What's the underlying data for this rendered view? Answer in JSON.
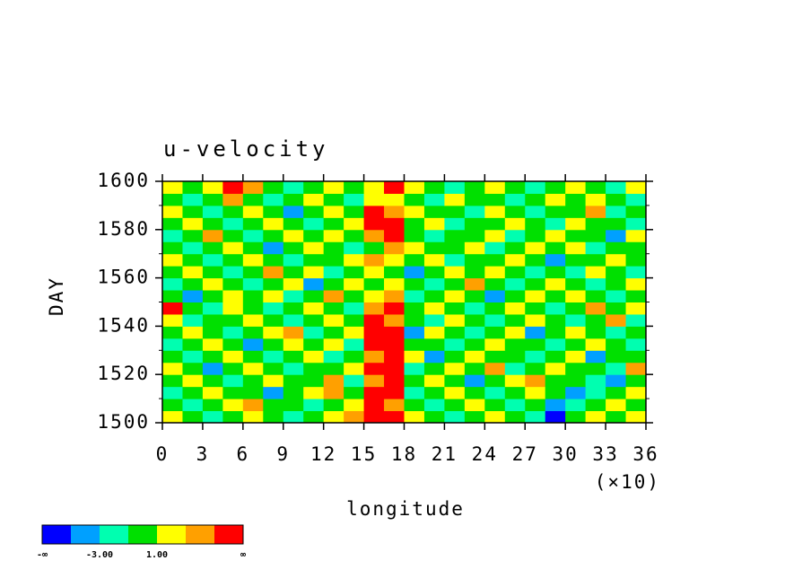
{
  "chart_data": {
    "type": "heatmap",
    "title": "u-velocity",
    "ylabel": "DAY",
    "xlabel": "longitude",
    "xaxis_multiplier": "(×10)",
    "xlim": [
      0,
      36
    ],
    "ylim": [
      1500,
      1600
    ],
    "xticks": [
      0,
      3,
      6,
      9,
      12,
      15,
      18,
      21,
      24,
      27,
      30,
      33,
      36
    ],
    "yticks": [
      1500,
      1520,
      1540,
      1560,
      1580,
      1600
    ],
    "yminorticks": [
      1510,
      1530,
      1550,
      1570,
      1590
    ],
    "xbins": [
      0,
      1.5,
      3,
      4.5,
      6,
      7.5,
      9,
      10.5,
      12,
      13.5,
      15,
      16.5,
      18,
      19.5,
      21,
      22.5,
      24,
      25.5,
      27,
      28.5,
      30,
      31.5,
      33,
      34.5,
      36
    ],
    "ybins": [
      1500,
      1505,
      1510,
      1515,
      1520,
      1525,
      1530,
      1535,
      1540,
      1545,
      1550,
      1555,
      1560,
      1565,
      1570,
      1575,
      1580,
      1585,
      1590,
      1595,
      1600
    ],
    "values": [
      [
        2,
        0,
        -2,
        0,
        2,
        0,
        -2,
        0,
        2,
        4,
        6,
        6,
        2,
        0,
        -2,
        0,
        2,
        0,
        -2,
        -6,
        0,
        2,
        0,
        2
      ],
      [
        0,
        -2,
        0,
        2,
        4,
        0,
        0,
        -2,
        0,
        2,
        6,
        4,
        0,
        -2,
        0,
        2,
        0,
        -2,
        0,
        -4,
        -2,
        0,
        2,
        0
      ],
      [
        -2,
        0,
        2,
        0,
        0,
        -4,
        0,
        2,
        4,
        0,
        6,
        6,
        -2,
        0,
        2,
        0,
        -2,
        0,
        2,
        0,
        -4,
        -2,
        0,
        2
      ],
      [
        0,
        2,
        0,
        -2,
        0,
        2,
        0,
        0,
        4,
        -2,
        4,
        6,
        0,
        2,
        0,
        -4,
        0,
        2,
        4,
        0,
        0,
        -2,
        -4,
        0
      ],
      [
        2,
        0,
        -4,
        0,
        2,
        0,
        -2,
        0,
        0,
        2,
        6,
        6,
        -2,
        0,
        2,
        0,
        4,
        -2,
        0,
        2,
        0,
        0,
        -2,
        4
      ],
      [
        0,
        -2,
        0,
        2,
        0,
        -2,
        0,
        2,
        -2,
        0,
        4,
        6,
        2,
        -4,
        0,
        2,
        0,
        0,
        -2,
        0,
        2,
        -4,
        0,
        0
      ],
      [
        -2,
        0,
        2,
        0,
        -4,
        0,
        2,
        0,
        2,
        -2,
        6,
        6,
        0,
        0,
        -2,
        0,
        2,
        0,
        0,
        -2,
        0,
        2,
        0,
        -2
      ],
      [
        0,
        2,
        0,
        -2,
        0,
        2,
        4,
        -2,
        0,
        2,
        6,
        6,
        -4,
        2,
        0,
        -2,
        0,
        2,
        -4,
        0,
        2,
        0,
        -2,
        0
      ],
      [
        2,
        -2,
        0,
        0,
        2,
        0,
        -2,
        0,
        2,
        0,
        6,
        4,
        0,
        -2,
        2,
        0,
        -2,
        0,
        2,
        0,
        -2,
        0,
        4,
        -2
      ],
      [
        6,
        0,
        -2,
        2,
        0,
        -2,
        0,
        2,
        0,
        -2,
        4,
        6,
        0,
        2,
        0,
        -2,
        0,
        2,
        0,
        -2,
        0,
        4,
        0,
        2
      ],
      [
        0,
        -4,
        0,
        2,
        0,
        2,
        -2,
        0,
        4,
        0,
        2,
        4,
        -2,
        0,
        2,
        0,
        -4,
        0,
        2,
        0,
        2,
        0,
        -2,
        0
      ],
      [
        -2,
        0,
        2,
        0,
        -2,
        0,
        2,
        -4,
        0,
        2,
        0,
        2,
        0,
        -2,
        0,
        4,
        0,
        -2,
        0,
        2,
        0,
        -2,
        0,
        2
      ],
      [
        0,
        2,
        0,
        -2,
        0,
        4,
        0,
        2,
        -2,
        0,
        2,
        0,
        -4,
        0,
        2,
        0,
        2,
        0,
        -2,
        0,
        -2,
        2,
        0,
        -2
      ],
      [
        2,
        0,
        -2,
        0,
        2,
        0,
        -2,
        0,
        0,
        2,
        4,
        2,
        0,
        2,
        -2,
        0,
        0,
        2,
        0,
        -4,
        0,
        0,
        2,
        0
      ],
      [
        0,
        -2,
        0,
        2,
        0,
        -4,
        0,
        2,
        0,
        -2,
        0,
        4,
        2,
        0,
        0,
        2,
        -2,
        0,
        2,
        0,
        2,
        -2,
        0,
        0
      ],
      [
        -2,
        0,
        4,
        0,
        -2,
        0,
        2,
        0,
        2,
        0,
        4,
        6,
        0,
        -2,
        0,
        0,
        2,
        -2,
        0,
        2,
        0,
        0,
        -4,
        2
      ],
      [
        0,
        2,
        0,
        -2,
        0,
        2,
        0,
        -2,
        0,
        2,
        6,
        6,
        0,
        2,
        -2,
        0,
        0,
        2,
        0,
        -2,
        2,
        0,
        0,
        -2
      ],
      [
        2,
        0,
        -2,
        0,
        2,
        0,
        -4,
        0,
        2,
        0,
        6,
        4,
        2,
        0,
        0,
        -2,
        2,
        0,
        -2,
        0,
        0,
        4,
        -2,
        0
      ],
      [
        0,
        -2,
        0,
        4,
        0,
        -2,
        0,
        2,
        0,
        -2,
        2,
        2,
        0,
        -2,
        2,
        0,
        0,
        -2,
        0,
        2,
        0,
        2,
        0,
        -2
      ],
      [
        2,
        0,
        2,
        6,
        4,
        0,
        -2,
        0,
        2,
        0,
        2,
        6,
        2,
        0,
        -2,
        0,
        2,
        0,
        -2,
        0,
        2,
        0,
        -2,
        2
      ]
    ],
    "colorbar": {
      "colors": [
        "#0000ff",
        "#00a0ff",
        "#00ffb0",
        "#00e000",
        "#ffff00",
        "#ffa000",
        "#ff0000"
      ],
      "levels": [
        -5,
        -3,
        -1,
        1,
        3,
        5
      ],
      "min_label": "-∞",
      "max_label": "∞",
      "ticks": [
        {
          "value": -3,
          "label": "-3.00"
        },
        {
          "value": 1,
          "label": "1.00"
        }
      ]
    }
  }
}
